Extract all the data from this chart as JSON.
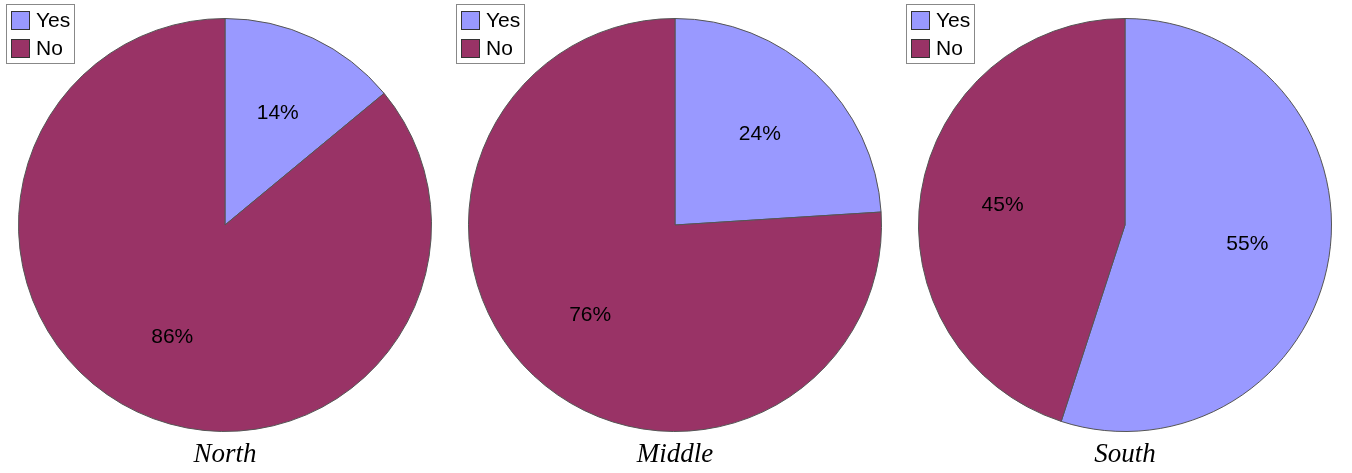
{
  "chart_data": [
    {
      "type": "pie",
      "title": "North",
      "categories": [
        "Yes",
        "No"
      ],
      "values": [
        14,
        86
      ],
      "colors": [
        "#9999ff",
        "#993366"
      ],
      "value_labels": [
        "14%",
        "86%"
      ],
      "legend": "top left"
    },
    {
      "type": "pie",
      "title": "Middle",
      "categories": [
        "Yes",
        "No"
      ],
      "values": [
        24,
        76
      ],
      "colors": [
        "#9999ff",
        "#993366"
      ],
      "value_labels": [
        "24%",
        "76%"
      ],
      "legend": "top left"
    },
    {
      "type": "pie",
      "title": "South",
      "categories": [
        "Yes",
        "No"
      ],
      "values": [
        55,
        45
      ],
      "colors": [
        "#9999ff",
        "#993366"
      ],
      "value_labels": [
        "55%",
        "45%"
      ],
      "legend": "top left"
    }
  ]
}
